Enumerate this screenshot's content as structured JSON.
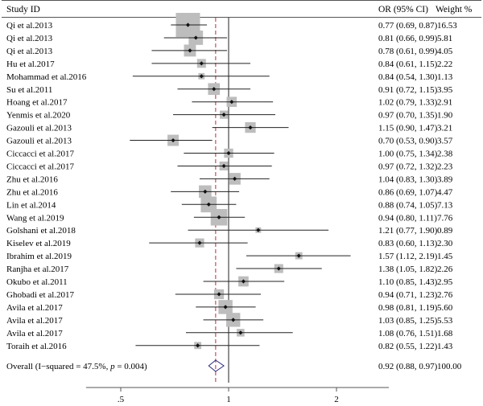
{
  "chart_data": {
    "type": "forest",
    "headers": {
      "study": "Study ID",
      "ci": "OR (95% CI)",
      "weight": "Weight %"
    },
    "x_scale": "log",
    "xlim": [
      0.4,
      2.8
    ],
    "ticks": [
      {
        "value": 0.5,
        "label": ".5"
      },
      {
        "value": 1,
        "label": "1"
      },
      {
        "value": 2,
        "label": "2"
      }
    ],
    "null_line": 1,
    "pooled_line": 0.92,
    "colors": {
      "box": "#bdbdbd",
      "point": "#111111",
      "ci_line": "#222222",
      "null_line": "#222222",
      "pooled_line": "#b5303b",
      "diamond": "#2a2a7a",
      "rule": "#555555"
    },
    "studies": [
      {
        "name": "Qi et al.2013",
        "or": 0.77,
        "lo": 0.69,
        "hi": 0.87,
        "ci_text": "0.77 (0.69, 0.87)",
        "weight": "16.53"
      },
      {
        "name": "Qi et al.2013",
        "or": 0.81,
        "lo": 0.66,
        "hi": 0.99,
        "ci_text": "0.81 (0.66, 0.99)",
        "weight": "5.81"
      },
      {
        "name": "Qi et al.2013",
        "or": 0.78,
        "lo": 0.61,
        "hi": 0.99,
        "ci_text": "0.78 (0.61, 0.99)",
        "weight": "4.05"
      },
      {
        "name": "Hu et al.2017",
        "or": 0.84,
        "lo": 0.61,
        "hi": 1.15,
        "ci_text": "0.84 (0.61, 1.15)",
        "weight": "2.22"
      },
      {
        "name": "Mohammad et al.2016",
        "or": 0.84,
        "lo": 0.54,
        "hi": 1.3,
        "ci_text": "0.84 (0.54, 1.30)",
        "weight": "1.13"
      },
      {
        "name": "Su et al.2011",
        "or": 0.91,
        "lo": 0.72,
        "hi": 1.15,
        "ci_text": "0.91 (0.72, 1.15)",
        "weight": "3.95"
      },
      {
        "name": "Hoang et al.2017",
        "or": 1.02,
        "lo": 0.79,
        "hi": 1.33,
        "ci_text": "1.02 (0.79, 1.33)",
        "weight": "2.91"
      },
      {
        "name": "Yenmis et al.2020",
        "or": 0.97,
        "lo": 0.7,
        "hi": 1.35,
        "ci_text": "0.97 (0.70, 1.35)",
        "weight": "1.90"
      },
      {
        "name": "Gazouli et al.2013",
        "or": 1.15,
        "lo": 0.9,
        "hi": 1.47,
        "ci_text": "1.15 (0.90, 1.47)",
        "weight": "3.21"
      },
      {
        "name": "Gazouli et al.2013",
        "or": 0.7,
        "lo": 0.53,
        "hi": 0.9,
        "ci_text": "0.70 (0.53, 0.90)",
        "weight": "3.57"
      },
      {
        "name": "Ciccacci et al.2017",
        "or": 1.0,
        "lo": 0.75,
        "hi": 1.34,
        "ci_text": "1.00 (0.75, 1.34)",
        "weight": "2.38"
      },
      {
        "name": "Ciccacci et al.2017",
        "or": 0.97,
        "lo": 0.72,
        "hi": 1.32,
        "ci_text": "0.97 (0.72, 1.32)",
        "weight": "2.23"
      },
      {
        "name": "Zhu et al.2016",
        "or": 1.04,
        "lo": 0.83,
        "hi": 1.3,
        "ci_text": "1.04 (0.83, 1.30)",
        "weight": "3.89"
      },
      {
        "name": "Zhu et al.2016",
        "or": 0.86,
        "lo": 0.69,
        "hi": 1.07,
        "ci_text": "0.86 (0.69, 1.07)",
        "weight": "4.47"
      },
      {
        "name": "Lin et al.2014",
        "or": 0.88,
        "lo": 0.74,
        "hi": 1.05,
        "ci_text": "0.88 (0.74, 1.05)",
        "weight": "7.13"
      },
      {
        "name": "Wang et al.2019",
        "or": 0.94,
        "lo": 0.8,
        "hi": 1.11,
        "ci_text": "0.94 (0.80, 1.11)",
        "weight": "7.76"
      },
      {
        "name": "Golshani et al.2018",
        "or": 1.21,
        "lo": 0.77,
        "hi": 1.9,
        "ci_text": "1.21 (0.77, 1.90)",
        "weight": "0.89"
      },
      {
        "name": "Kiselev et al.2019",
        "or": 0.83,
        "lo": 0.6,
        "hi": 1.13,
        "ci_text": "0.83 (0.60, 1.13)",
        "weight": "2.30"
      },
      {
        "name": "Ibrahim et al.2019",
        "or": 1.57,
        "lo": 1.12,
        "hi": 2.19,
        "ci_text": "1.57 (1.12, 2.19)",
        "weight": "1.45"
      },
      {
        "name": "Ranjha et al.2017",
        "or": 1.38,
        "lo": 1.05,
        "hi": 1.82,
        "ci_text": "1.38 (1.05, 1.82)",
        "weight": "2.26"
      },
      {
        "name": "Okubo et al.2011",
        "or": 1.1,
        "lo": 0.85,
        "hi": 1.43,
        "ci_text": "1.10 (0.85, 1.43)",
        "weight": "2.95"
      },
      {
        "name": "Ghobadi et al.2017",
        "or": 0.94,
        "lo": 0.71,
        "hi": 1.23,
        "ci_text": "0.94 (0.71, 1.23)",
        "weight": "2.76"
      },
      {
        "name": "Avila et al.2017",
        "or": 0.98,
        "lo": 0.81,
        "hi": 1.19,
        "ci_text": "0.98 (0.81, 1.19)",
        "weight": "5.60"
      },
      {
        "name": "Avila et al.2017",
        "or": 1.03,
        "lo": 0.85,
        "hi": 1.25,
        "ci_text": "1.03 (0.85, 1.25)",
        "weight": "5.53"
      },
      {
        "name": "Avila et al.2017",
        "or": 1.08,
        "lo": 0.76,
        "hi": 1.51,
        "ci_text": "1.08 (0.76, 1.51)",
        "weight": "1.68"
      },
      {
        "name": "Toraih et al.2016",
        "or": 0.82,
        "lo": 0.55,
        "hi": 1.22,
        "ci_text": "0.82 (0.55, 1.22)",
        "weight": "1.43"
      }
    ],
    "overall": {
      "label_prefix": "Overall (I−squared = 47.5%, ",
      "label_p": "p",
      "label_suffix": " = 0.004)",
      "or": 0.92,
      "lo": 0.88,
      "hi": 0.97,
      "ci_text": "0.92 (0.88, 0.97)",
      "weight": "100.00"
    }
  }
}
